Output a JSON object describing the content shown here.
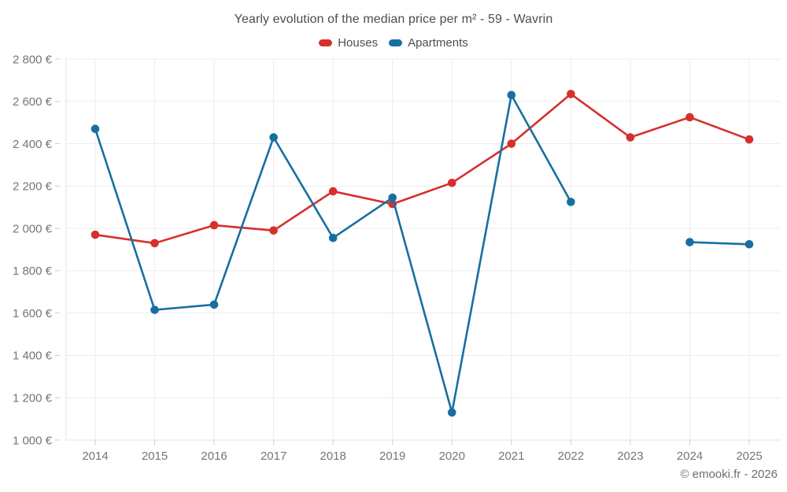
{
  "header": {
    "title": "Yearly evolution of the median price per m² - 59 - Wavrin"
  },
  "chart_data": {
    "type": "line",
    "title": "Yearly evolution of the median price per m² - 59 - Wavrin",
    "categories": [
      "2014",
      "2015",
      "2016",
      "2017",
      "2018",
      "2019",
      "2020",
      "2021",
      "2022",
      "2023",
      "2024",
      "2025"
    ],
    "series": [
      {
        "name": "Houses",
        "color": "#d5302c",
        "values": [
          1970,
          1930,
          2015,
          1990,
          2175,
          2115,
          2215,
          2400,
          2635,
          2430,
          2525,
          2420
        ]
      },
      {
        "name": "Apartments",
        "color": "#176fa1",
        "values": [
          2470,
          1615,
          1640,
          2430,
          1955,
          2145,
          1130,
          2630,
          2125,
          null,
          1935,
          1925
        ]
      }
    ],
    "xlabel": "",
    "ylabel": "",
    "ylim": [
      1000,
      2800
    ],
    "ytick_step": 200,
    "ytick_format": "1 234 €",
    "grid": true,
    "legend_position": "top",
    "marker": "circle"
  },
  "footer": {
    "copyright": "© emooki.fr - 2026"
  },
  "colors": {
    "houses": "#d5302c",
    "apartments": "#176fa1",
    "grid_line": "#ececec",
    "tick_line": "#cccccc",
    "axis_line": "#e3e3e3",
    "axis_text": "#757575",
    "title_text": "#4d4d4d",
    "background": "#ffffff"
  }
}
